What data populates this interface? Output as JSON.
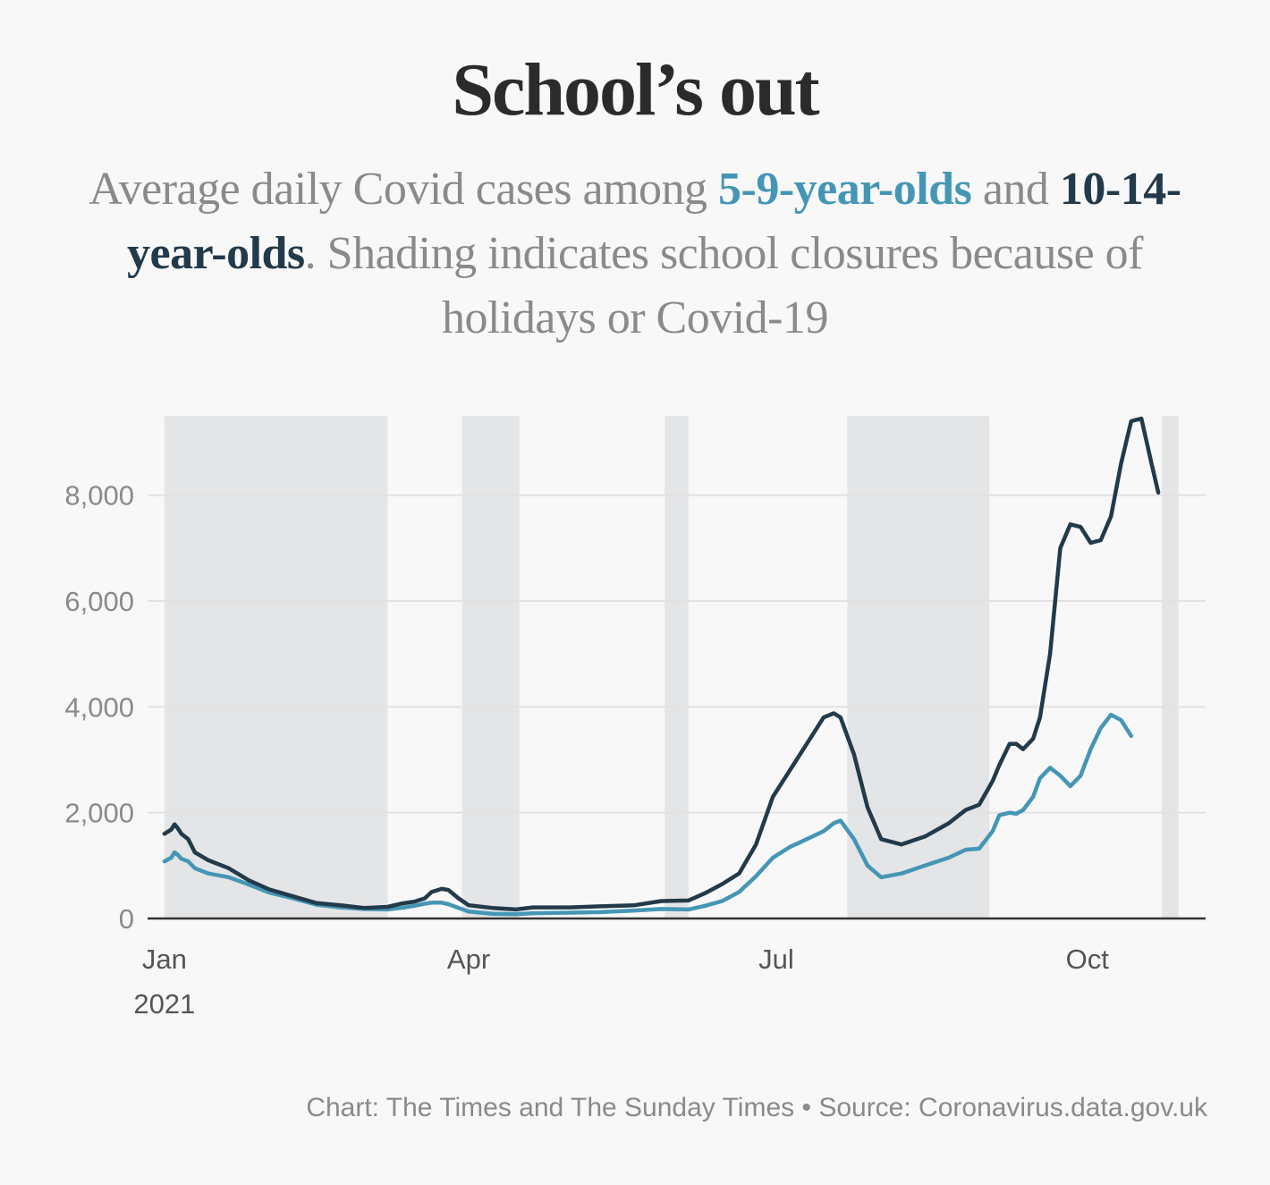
{
  "title": "School’s out",
  "subtitle": {
    "part1": "Average daily Covid cases among ",
    "series_a_label": "5-9-year-olds",
    "part2": " and ",
    "series_b_label": "10-14-year-olds",
    "part3": ". Shading indicates school closures because of holidays or Covid-19"
  },
  "footer": "Chart: The Times and The Sunday Times • Source: Coronavirus.data.gov.uk",
  "colors": {
    "series_a": "#4596b5",
    "series_b": "#223a4a",
    "shading": "#e4e5e7",
    "grid": "#e2e2e2",
    "axis": "#333333"
  },
  "chart_data": {
    "type": "line",
    "title": "School’s out",
    "x_ticks": [
      {
        "date": "2021-01-01",
        "label": "Jan",
        "sublabel": "2021"
      },
      {
        "date": "2021-04-01",
        "label": "Apr",
        "sublabel": ""
      },
      {
        "date": "2021-07-01",
        "label": "Jul",
        "sublabel": ""
      },
      {
        "date": "2021-10-01",
        "label": "Oct",
        "sublabel": ""
      }
    ],
    "y_ticks": [
      {
        "value": 0,
        "label": "0"
      },
      {
        "value": 2000,
        "label": "2,000"
      },
      {
        "value": 4000,
        "label": "4,000"
      },
      {
        "value": 6000,
        "label": "6,000"
      },
      {
        "value": 8000,
        "label": "8,000"
      }
    ],
    "ylim": [
      0,
      9500
    ],
    "xlim": [
      "2020-12-27",
      "2021-11-05"
    ],
    "grid": true,
    "shaded_periods": [
      [
        "2021-01-01",
        "2021-03-08"
      ],
      [
        "2021-03-30",
        "2021-04-16"
      ],
      [
        "2021-05-29",
        "2021-06-05"
      ],
      [
        "2021-07-22",
        "2021-09-02"
      ],
      [
        "2021-10-23",
        "2021-10-28"
      ]
    ],
    "series": [
      {
        "name": "10-14-year-olds",
        "color": "#223a4a",
        "x": [
          "2021-01-01",
          "2021-01-03",
          "2021-01-04",
          "2021-01-05",
          "2021-01-06",
          "2021-01-08",
          "2021-01-10",
          "2021-01-14",
          "2021-01-20",
          "2021-01-26",
          "2021-02-01",
          "2021-02-08",
          "2021-02-15",
          "2021-02-22",
          "2021-03-01",
          "2021-03-08",
          "2021-03-12",
          "2021-03-16",
          "2021-03-19",
          "2021-03-21",
          "2021-03-24",
          "2021-03-26",
          "2021-03-29",
          "2021-04-01",
          "2021-04-08",
          "2021-04-15",
          "2021-04-20",
          "2021-05-01",
          "2021-05-10",
          "2021-05-20",
          "2021-05-28",
          "2021-06-05",
          "2021-06-10",
          "2021-06-15",
          "2021-06-20",
          "2021-06-25",
          "2021-06-30",
          "2021-07-05",
          "2021-07-10",
          "2021-07-15",
          "2021-07-18",
          "2021-07-20",
          "2021-07-24",
          "2021-07-28",
          "2021-08-01",
          "2021-08-07",
          "2021-08-14",
          "2021-08-21",
          "2021-08-26",
          "2021-08-30",
          "2021-09-03",
          "2021-09-05",
          "2021-09-08",
          "2021-09-10",
          "2021-09-12",
          "2021-09-15",
          "2021-09-17",
          "2021-09-20",
          "2021-09-23",
          "2021-09-26",
          "2021-09-29",
          "2021-10-02",
          "2021-10-05",
          "2021-10-08",
          "2021-10-11",
          "2021-10-14",
          "2021-10-17",
          "2021-10-20",
          "2021-10-22",
          "2021-10-24",
          "2021-10-27",
          "2021-10-29"
        ],
        "values": [
          1600,
          1680,
          1780,
          1700,
          1600,
          1500,
          1250,
          1100,
          950,
          720,
          550,
          420,
          290,
          250,
          200,
          220,
          280,
          320,
          380,
          500,
          560,
          540,
          380,
          250,
          200,
          170,
          210,
          210,
          230,
          250,
          330,
          340,
          480,
          650,
          850,
          1400,
          2300,
          2800,
          3300,
          3800,
          3880,
          3800,
          3100,
          2100,
          1500,
          1400,
          1550,
          1800,
          2050,
          2150,
          2600,
          2900,
          3300,
          3300,
          3200,
          3400,
          3800,
          5000,
          7000,
          7450,
          7400,
          7100,
          7150,
          7600,
          8600,
          9400,
          9450,
          8600,
          8050,
          null,
          null,
          null
        ]
      },
      {
        "name": "5-9-year-olds",
        "color": "#4596b5",
        "x": [
          "2021-01-01",
          "2021-01-03",
          "2021-01-04",
          "2021-01-05",
          "2021-01-06",
          "2021-01-08",
          "2021-01-10",
          "2021-01-14",
          "2021-01-20",
          "2021-01-26",
          "2021-02-01",
          "2021-02-08",
          "2021-02-15",
          "2021-02-22",
          "2021-03-01",
          "2021-03-08",
          "2021-03-12",
          "2021-03-16",
          "2021-03-19",
          "2021-03-21",
          "2021-03-24",
          "2021-03-26",
          "2021-03-29",
          "2021-04-01",
          "2021-04-08",
          "2021-04-15",
          "2021-04-20",
          "2021-05-01",
          "2021-05-10",
          "2021-05-20",
          "2021-05-28",
          "2021-06-05",
          "2021-06-10",
          "2021-06-15",
          "2021-06-20",
          "2021-06-25",
          "2021-06-30",
          "2021-07-05",
          "2021-07-10",
          "2021-07-15",
          "2021-07-18",
          "2021-07-20",
          "2021-07-24",
          "2021-07-28",
          "2021-08-01",
          "2021-08-07",
          "2021-08-14",
          "2021-08-21",
          "2021-08-26",
          "2021-08-30",
          "2021-09-03",
          "2021-09-05",
          "2021-09-08",
          "2021-09-10",
          "2021-09-12",
          "2021-09-15",
          "2021-09-17",
          "2021-09-20",
          "2021-09-23",
          "2021-09-26",
          "2021-09-29",
          "2021-10-02",
          "2021-10-05",
          "2021-10-08",
          "2021-10-11",
          "2021-10-14",
          "2021-10-17",
          "2021-10-20",
          "2021-10-22",
          "2021-10-24",
          "2021-10-27",
          "2021-10-29"
        ],
        "values": [
          1080,
          1150,
          1250,
          1200,
          1130,
          1080,
          950,
          850,
          780,
          640,
          490,
          380,
          260,
          210,
          180,
          170,
          200,
          240,
          280,
          300,
          300,
          270,
          200,
          130,
          90,
          80,
          100,
          110,
          120,
          150,
          180,
          170,
          240,
          330,
          500,
          800,
          1150,
          1350,
          1500,
          1650,
          1800,
          1850,
          1500,
          1000,
          780,
          850,
          1000,
          1150,
          1300,
          1320,
          1650,
          1950,
          2000,
          1980,
          2050,
          2300,
          2650,
          2850,
          2700,
          2500,
          2700,
          3200,
          3600,
          3850,
          3750,
          3450,
          null,
          null,
          null,
          null,
          null,
          null
        ]
      }
    ]
  }
}
